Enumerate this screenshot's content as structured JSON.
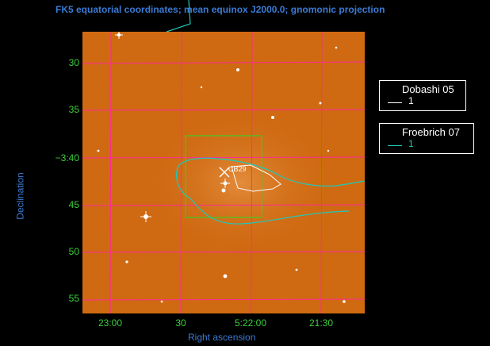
{
  "title": "FK5 equatorial coordinates; mean equinox J2000.0; gnomonic projection",
  "axes": {
    "xlabel": "Right ascension",
    "ylabel": "Declination",
    "x_ticks": [
      "23:00",
      "30",
      "5:22:00",
      "21:30"
    ],
    "y_ticks": [
      "30",
      "35",
      "−3:40",
      "45",
      "50",
      "55"
    ]
  },
  "object_label": "CB29",
  "legend": [
    {
      "title": "Dobashi 05",
      "value": "1",
      "color": "#ffffff"
    },
    {
      "title": "Froebrich 07",
      "value": "1",
      "color": "#20c8b8"
    }
  ],
  "colors": {
    "grid": "#ff2a9a",
    "image": "#cf6a12",
    "box": "#22dd22",
    "axis_text": "#3a7bd5",
    "tick_text": "#3ccf3c"
  }
}
